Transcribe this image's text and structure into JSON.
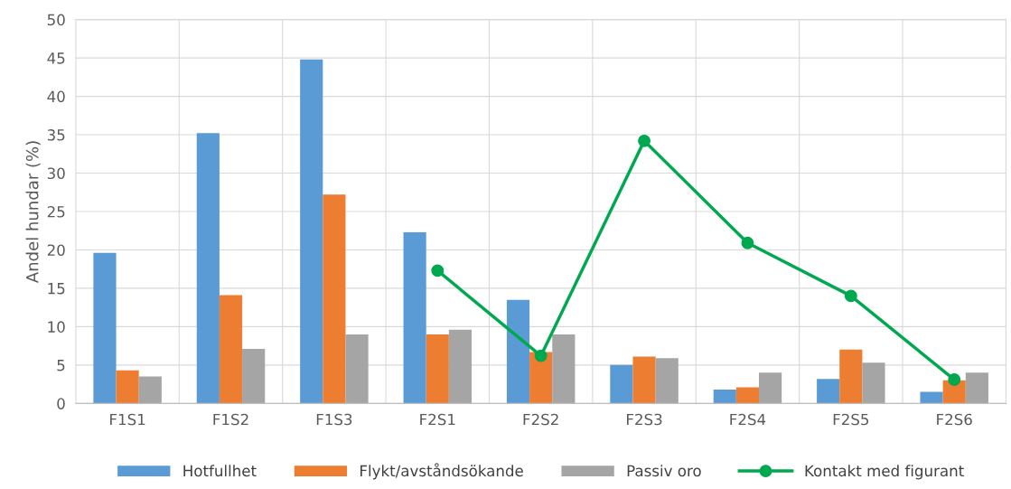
{
  "chart_data": {
    "type": "bar",
    "ylabel": "Andel hundar (%)",
    "categories": [
      "F1S1",
      "F1S2",
      "F1S3",
      "F2S1",
      "F2S2",
      "F2S3",
      "F2S4",
      "F2S5",
      "F2S6"
    ],
    "series": [
      {
        "name": "Hotfullhet",
        "color": "#5b9bd5",
        "values": [
          19.6,
          35.2,
          44.8,
          22.3,
          13.5,
          5.0,
          1.8,
          3.2,
          1.5
        ]
      },
      {
        "name": "Flykt/avståndsökande",
        "color": "#ed7d31",
        "values": [
          4.3,
          14.1,
          27.2,
          9.0,
          6.7,
          6.1,
          2.1,
          7.0,
          3.0
        ]
      },
      {
        "name": "Passiv oro",
        "color": "#a5a5a5",
        "values": [
          3.5,
          7.1,
          9.0,
          9.6,
          9.0,
          5.9,
          4.0,
          5.3,
          4.0
        ]
      },
      {
        "name": "Kontakt med figurant",
        "color": "#00a84f",
        "type": "line",
        "marker": "circle",
        "values": [
          null,
          null,
          null,
          17.3,
          6.2,
          34.2,
          20.9,
          14.0,
          3.1
        ]
      }
    ],
    "ylim": [
      0,
      50
    ],
    "yticks": [
      0,
      5,
      10,
      15,
      20,
      25,
      30,
      35,
      40,
      45,
      50
    ],
    "grid": true,
    "legend": "bottom"
  }
}
